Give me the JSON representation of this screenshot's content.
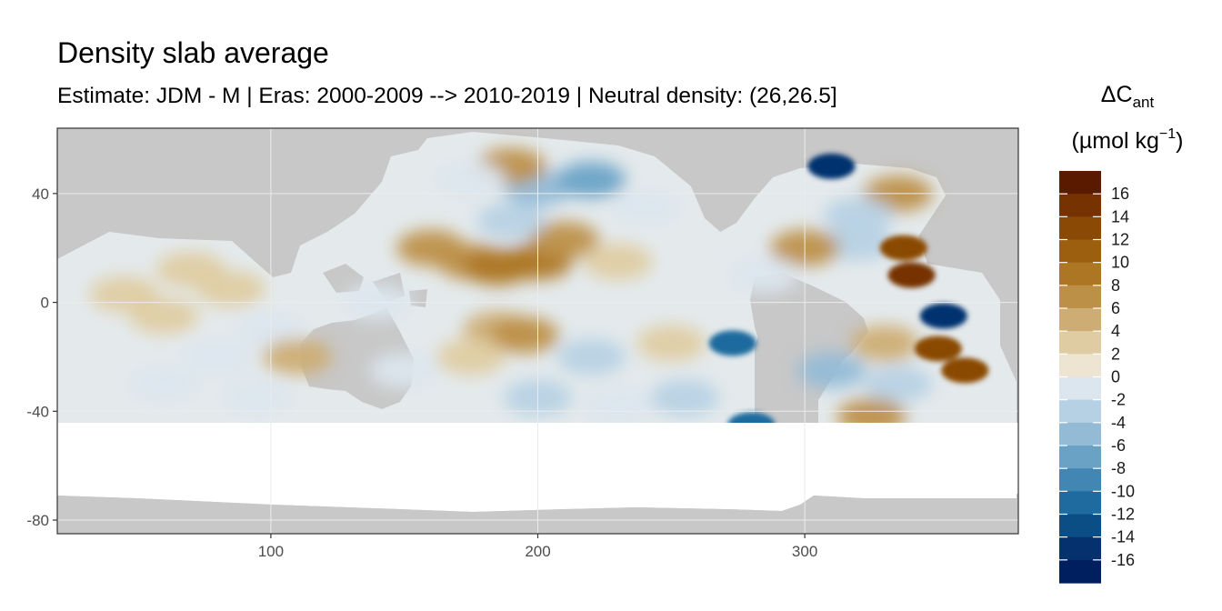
{
  "chart_data": {
    "type": "heatmap",
    "title": "Density slab average",
    "subtitle": "Estimate: JDM - M | Eras: 2000-2009 --> 2010-2019 | Neutral density: (26,26.5]",
    "xlabel": "",
    "ylabel": "",
    "xlim": [
      20,
      380
    ],
    "ylim": [
      -85,
      64
    ],
    "x_ticks": [
      "100",
      "200",
      "300"
    ],
    "x_tick_values": [
      100,
      200,
      300
    ],
    "y_ticks": [
      "40",
      "0",
      "-40",
      "-80"
    ],
    "y_tick_values": [
      40,
      0,
      -40,
      -80
    ],
    "grid": true,
    "legend": {
      "title_main": "ΔC",
      "title_sub": "ant",
      "title_units_pre": "(µmol kg",
      "title_units_sup": "−1",
      "title_units_post": ")",
      "placement": "right",
      "labels": [
        "16",
        "14",
        "12",
        "10",
        "8",
        "6",
        "4",
        "2",
        "0",
        "-2",
        "-4",
        "-6",
        "-8",
        "-10",
        "-12",
        "-14",
        "-16"
      ],
      "bins": [
        17,
        15,
        13,
        11,
        9,
        7,
        5,
        3,
        1,
        -1,
        -3,
        -5,
        -7,
        -9,
        -11,
        -13,
        -15,
        -17
      ],
      "colors": [
        "#5a1a00",
        "#763200",
        "#8a4a05",
        "#9c5f10",
        "#ad7625",
        "#bd9048",
        "#cdad74",
        "#dfcca2",
        "#ede4d2",
        "#dbe6ee",
        "#b7d1e4",
        "#93bbd6",
        "#6aa2c6",
        "#4287b3",
        "#1f6a9e",
        "#0b4e86",
        "#05326f",
        "#001f5e"
      ]
    },
    "cells": [
      {
        "lon": 45,
        "lat": 3,
        "value": 2.5
      },
      {
        "lon": 60,
        "lat": -5,
        "value": 1.5
      },
      {
        "lon": 70,
        "lat": 12,
        "value": 3
      },
      {
        "lon": 85,
        "lat": 5,
        "value": 2
      },
      {
        "lon": 80,
        "lat": -20,
        "value": -1.5
      },
      {
        "lon": 60,
        "lat": -30,
        "value": -1
      },
      {
        "lon": 100,
        "lat": -10,
        "value": -2.5
      },
      {
        "lon": 110,
        "lat": -20,
        "value": 5
      },
      {
        "lon": 95,
        "lat": -35,
        "value": -1.2
      },
      {
        "lon": 140,
        "lat": 0,
        "value": -1.5
      },
      {
        "lon": 150,
        "lat": -25,
        "value": -2
      },
      {
        "lon": 160,
        "lat": 20,
        "value": 7
      },
      {
        "lon": 175,
        "lat": 15,
        "value": 6
      },
      {
        "lon": 185,
        "lat": 13,
        "value": 9
      },
      {
        "lon": 200,
        "lat": 15,
        "value": 8
      },
      {
        "lon": 210,
        "lat": 23,
        "value": 6
      },
      {
        "lon": 190,
        "lat": 30,
        "value": -4
      },
      {
        "lon": 200,
        "lat": 42,
        "value": -6
      },
      {
        "lon": 190,
        "lat": 50,
        "value": 6
      },
      {
        "lon": 220,
        "lat": 45,
        "value": -8
      },
      {
        "lon": 175,
        "lat": 45,
        "value": -2
      },
      {
        "lon": 240,
        "lat": 35,
        "value": -2
      },
      {
        "lon": 230,
        "lat": 15,
        "value": 3
      },
      {
        "lon": 185,
        "lat": -10,
        "value": 5
      },
      {
        "lon": 195,
        "lat": -12,
        "value": 7
      },
      {
        "lon": 175,
        "lat": -20,
        "value": 3
      },
      {
        "lon": 220,
        "lat": -20,
        "value": -4
      },
      {
        "lon": 250,
        "lat": -15,
        "value": 2
      },
      {
        "lon": 273,
        "lat": -15,
        "value": -11
      },
      {
        "lon": 255,
        "lat": -35,
        "value": -3
      },
      {
        "lon": 230,
        "lat": -38,
        "value": -1
      },
      {
        "lon": 200,
        "lat": -35,
        "value": -3
      },
      {
        "lon": 335,
        "lat": 40,
        "value": 6
      },
      {
        "lon": 320,
        "lat": 32,
        "value": -3
      },
      {
        "lon": 320,
        "lat": 22,
        "value": -4
      },
      {
        "lon": 337,
        "lat": 20,
        "value": 12
      },
      {
        "lon": 300,
        "lat": 20,
        "value": 7
      },
      {
        "lon": 340,
        "lat": 10,
        "value": 14
      },
      {
        "lon": 352,
        "lat": -5,
        "value": -15
      },
      {
        "lon": 350,
        "lat": -17,
        "value": 13
      },
      {
        "lon": 330,
        "lat": -15,
        "value": 5
      },
      {
        "lon": 335,
        "lat": -30,
        "value": -4
      },
      {
        "lon": 360,
        "lat": -25,
        "value": 12
      },
      {
        "lon": 310,
        "lat": -25,
        "value": -6
      },
      {
        "lon": 310,
        "lat": 50,
        "value": -16
      },
      {
        "lon": 325,
        "lat": -42,
        "value": 6
      },
      {
        "lon": 280,
        "lat": -45,
        "value": -12
      },
      {
        "lon": 285,
        "lat": 10,
        "value": -2
      }
    ]
  }
}
